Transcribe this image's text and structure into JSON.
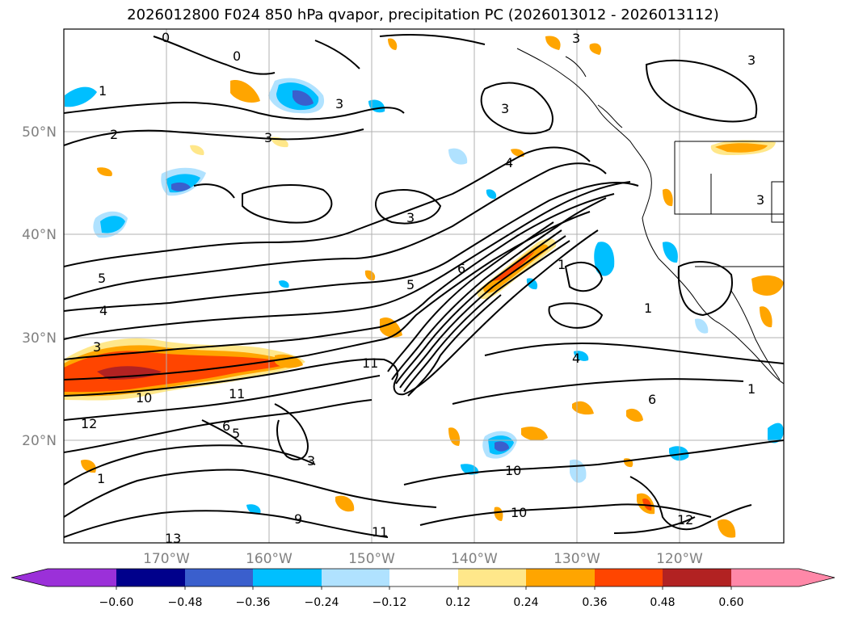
{
  "title": "2026012800 F024 850 hPa qvapor, precipitation PC (2026013012 - 2026013112)",
  "lat_labels": [
    "50°N",
    "40°N",
    "30°N",
    "20°N"
  ],
  "lon_labels": [
    "170°W",
    "160°W",
    "150°W",
    "140°W",
    "130°W",
    "120°W"
  ],
  "colorbar": {
    "ticks": [
      "−0.60",
      "−0.48",
      "−0.36",
      "−0.24",
      "−0.12",
      "0.12",
      "0.24",
      "0.36",
      "0.48",
      "0.60"
    ],
    "colors": [
      "#9b30d9",
      "#00008b",
      "#3a5fcd",
      "#00bfff",
      "#b0e2ff",
      "#ffffff",
      "#ffe78a",
      "#ffa500",
      "#ff4500",
      "#b22222",
      "#ff88a8"
    ]
  },
  "contour_labels": [
    "0",
    "0",
    "1",
    "2",
    "3",
    "3",
    "3",
    "3",
    "3",
    "3",
    "3",
    "3",
    "4",
    "4",
    "5",
    "5",
    "6",
    "10",
    "11",
    "11",
    "12",
    "1",
    "1",
    "3",
    "4",
    "1",
    "5",
    "6",
    "6",
    "9",
    "10",
    "10",
    "11",
    "12",
    "1",
    "13"
  ]
}
